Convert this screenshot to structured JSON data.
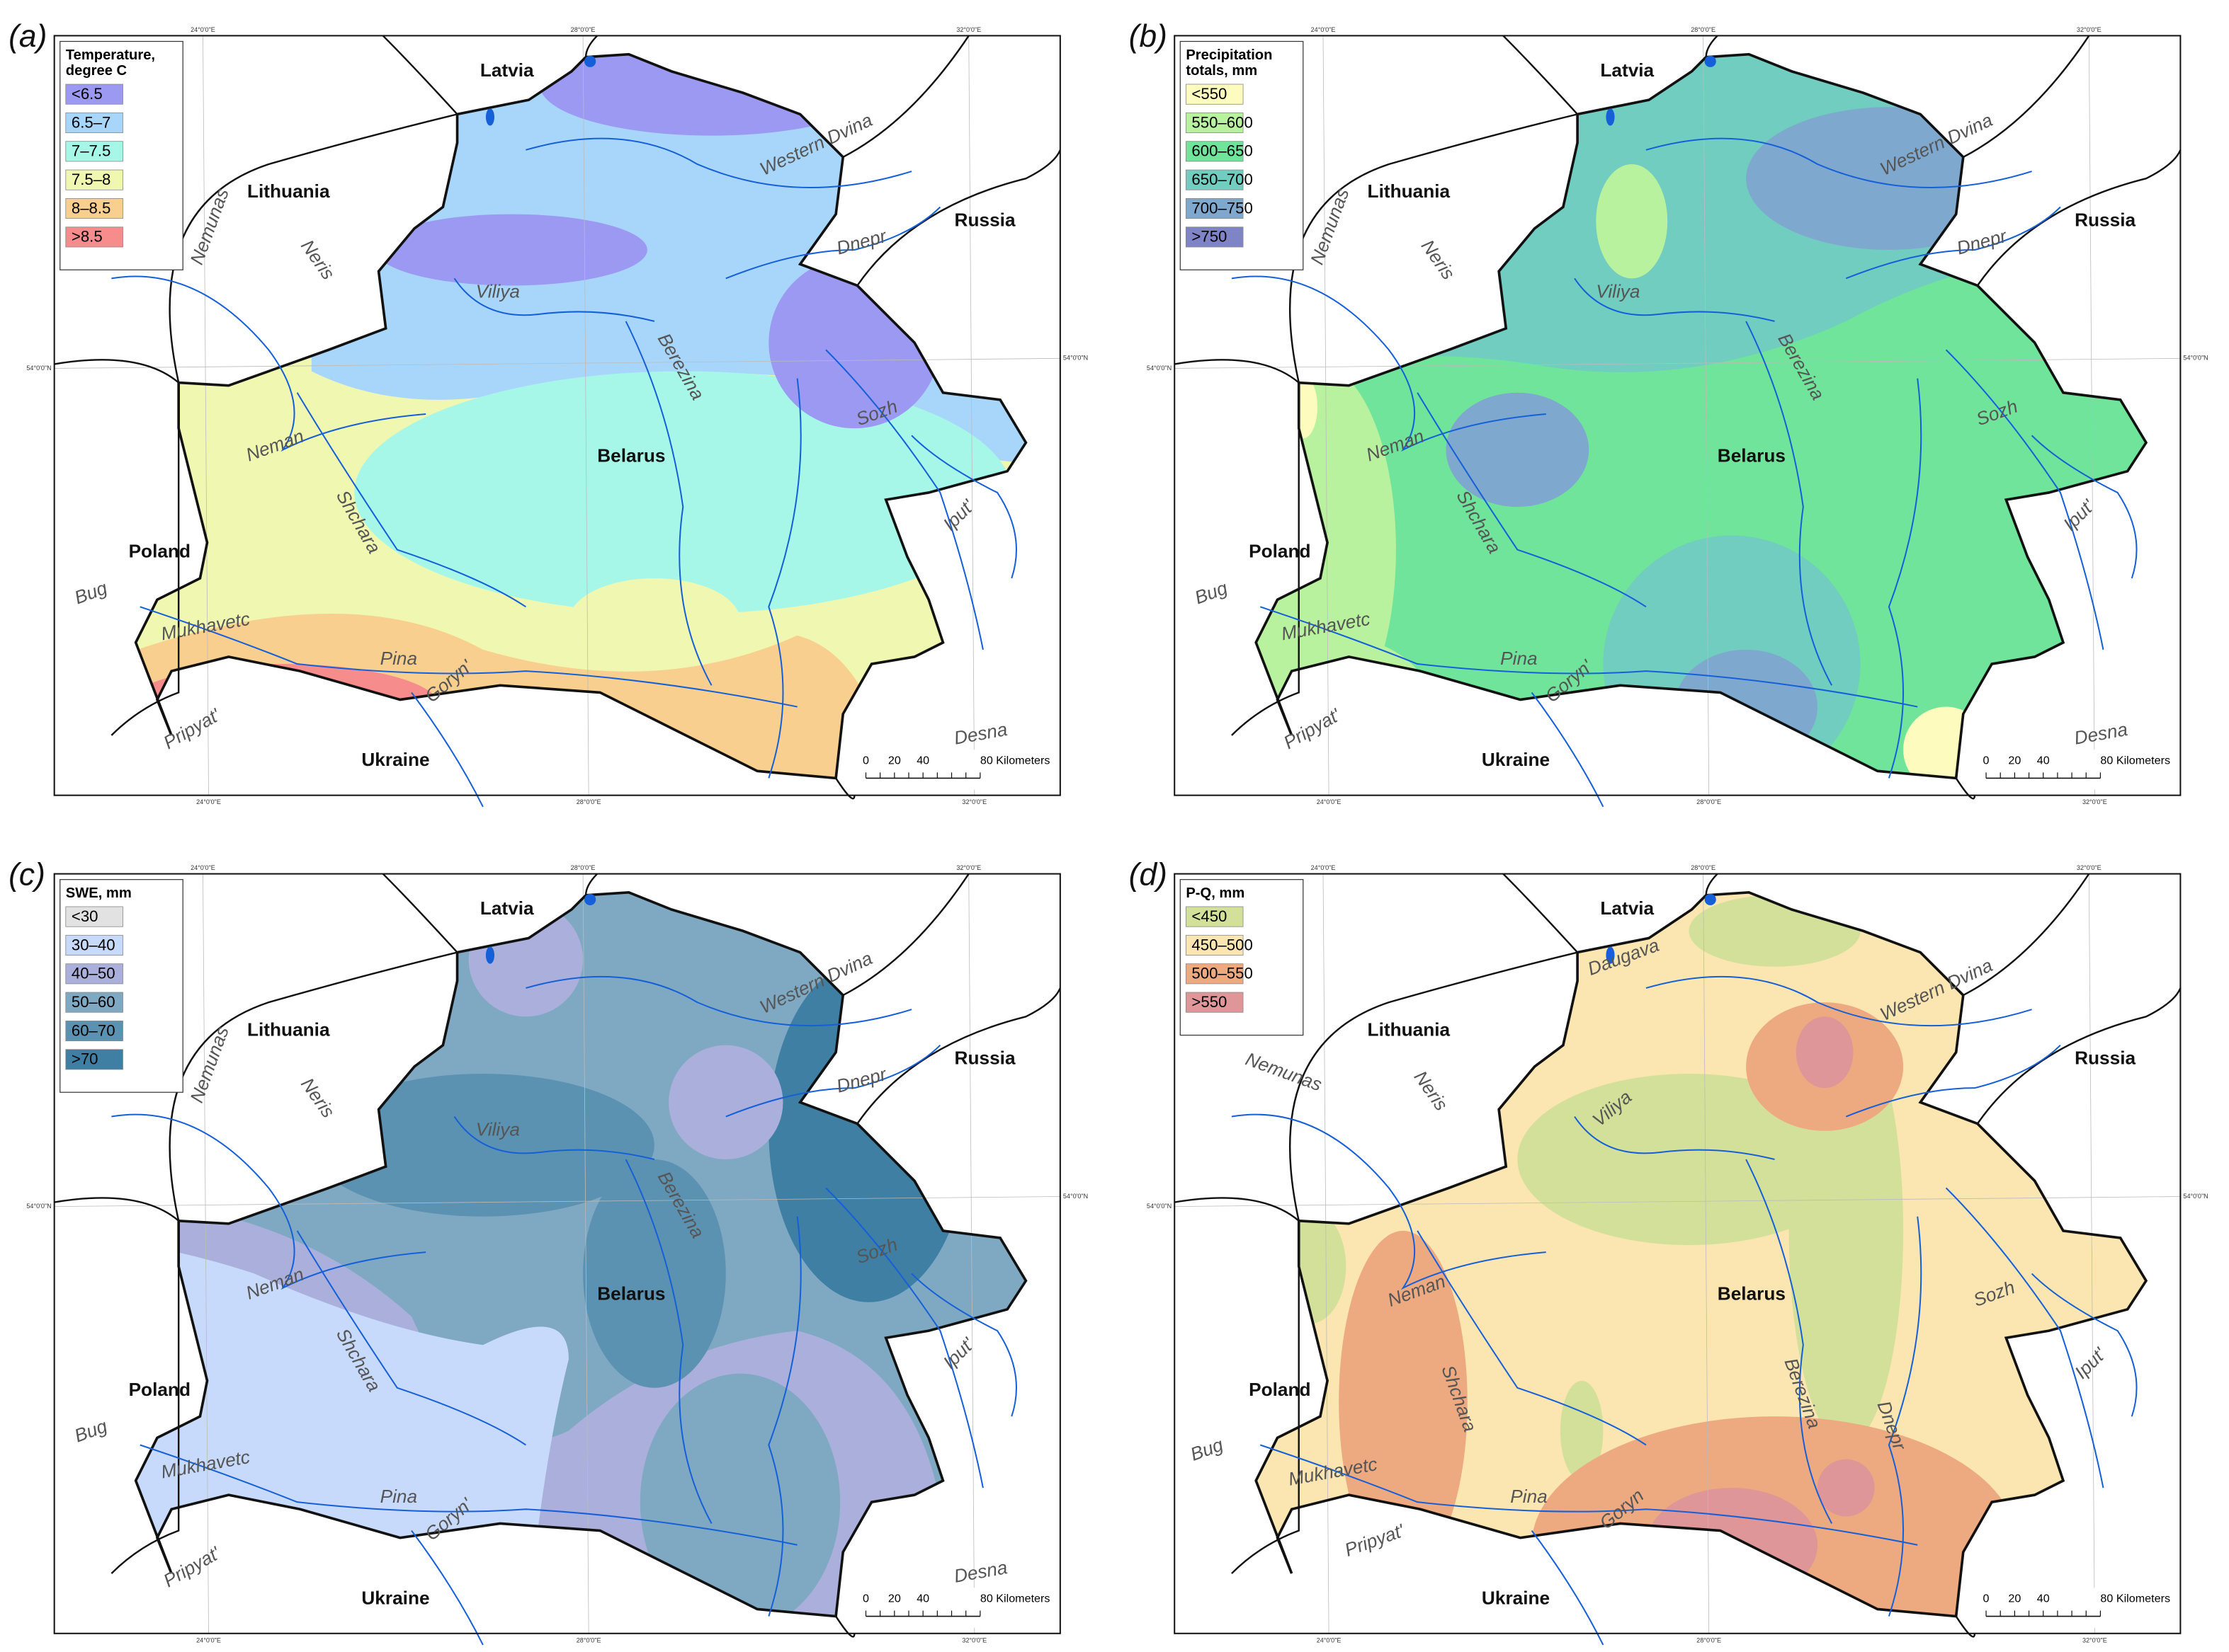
{
  "panels": [
    {
      "label": "(a)",
      "legend": {
        "title": [
          "Temperature,",
          "degree C"
        ],
        "items": [
          {
            "label": "<6.5",
            "color": "#9c99f2"
          },
          {
            "label": "6.5–7",
            "color": "#a8d6fb"
          },
          {
            "label": "7–7.5",
            "color": "#a7f7e8"
          },
          {
            "label": "7.5–8",
            "color": "#f0f7b0"
          },
          {
            "label": "8–8.5",
            "color": "#f8cf8e"
          },
          {
            "label": ">8.5",
            "color": "#f68c8c"
          }
        ]
      },
      "rivers": [
        "Western Dvina",
        "Dnepr",
        "Nemunas",
        "Neris",
        "Viliya",
        "Berezina",
        "Neman",
        "Shchara",
        "Sozh",
        "Iput'",
        "Bug",
        "Mukhavetc",
        "Pina",
        "Goryn'",
        "Pripyat'",
        "Desna"
      ]
    },
    {
      "label": "(b)",
      "legend": {
        "title": [
          "Precipitation",
          "totals, mm"
        ],
        "items": [
          {
            "label": "<550",
            "color": "#fdfbbd"
          },
          {
            "label": "550–600",
            "color": "#b9f29e"
          },
          {
            "label": "600–650",
            "color": "#6fe49a"
          },
          {
            "label": "650–700",
            "color": "#70cdc0"
          },
          {
            "label": "700–750",
            "color": "#7fa8cf"
          },
          {
            "label": ">750",
            "color": "#7f84c7"
          }
        ]
      },
      "rivers": [
        "Western Dvina",
        "Dnepr",
        "Nemunas",
        "Neris",
        "Viliya",
        "Berezina",
        "Neman",
        "Shchara",
        "Sozh",
        "Iput'",
        "Bug",
        "Mukhavetc",
        "Pina",
        "Goryn'",
        "Pripyat'",
        "Desna"
      ]
    },
    {
      "label": "(c)",
      "legend": {
        "title": [
          "SWE, mm"
        ],
        "items": [
          {
            "label": "<30",
            "color": "#e2e2e2"
          },
          {
            "label": "30–40",
            "color": "#c8dafb"
          },
          {
            "label": "40–50",
            "color": "#aab0db"
          },
          {
            "label": "50–60",
            "color": "#7fa9c3"
          },
          {
            "label": "60–70",
            "color": "#5c92b1"
          },
          {
            "label": ">70",
            "color": "#3f7fa3"
          }
        ]
      },
      "rivers": [
        "Western Dvina",
        "Dnepr",
        "Nemunas",
        "Neris",
        "Viliya",
        "Berezina",
        "Neman",
        "Shchara",
        "Sozh",
        "Iput'",
        "Bug",
        "Mukhavetc",
        "Pina",
        "Goryn'",
        "Pripyat'",
        "Desna"
      ]
    },
    {
      "label": "(d)",
      "legend": {
        "title": [
          "P-Q, mm"
        ],
        "items": [
          {
            "label": "<450",
            "color": "#d3e09a"
          },
          {
            "label": "450–500",
            "color": "#fbe5b0"
          },
          {
            "label": "500–550",
            "color": "#eda97f"
          },
          {
            "label": ">550",
            "color": "#de9699"
          }
        ]
      },
      "rivers": [
        "Daugava",
        "Western Dvina",
        "Nemunas",
        "Neris",
        "Viliya",
        "Neman",
        "Shchara",
        "Berezina",
        "Dnepr",
        "Sozh",
        "Iput'",
        "Bug",
        "Mukhavetc",
        "Pina",
        "Goryn",
        "Pripyat'"
      ]
    }
  ],
  "countries": [
    "Latvia",
    "Lithuania",
    "Russia",
    "Belarus",
    "Poland",
    "Ukraine"
  ],
  "scale_bar": [
    "0",
    "20",
    "40",
    "80 Kilometers"
  ],
  "graticule": {
    "meridians": [
      "24°0'0\"E",
      "28°0'0\"E",
      "32°0'0\"E"
    ],
    "parallel": "54°0'0\"N"
  }
}
